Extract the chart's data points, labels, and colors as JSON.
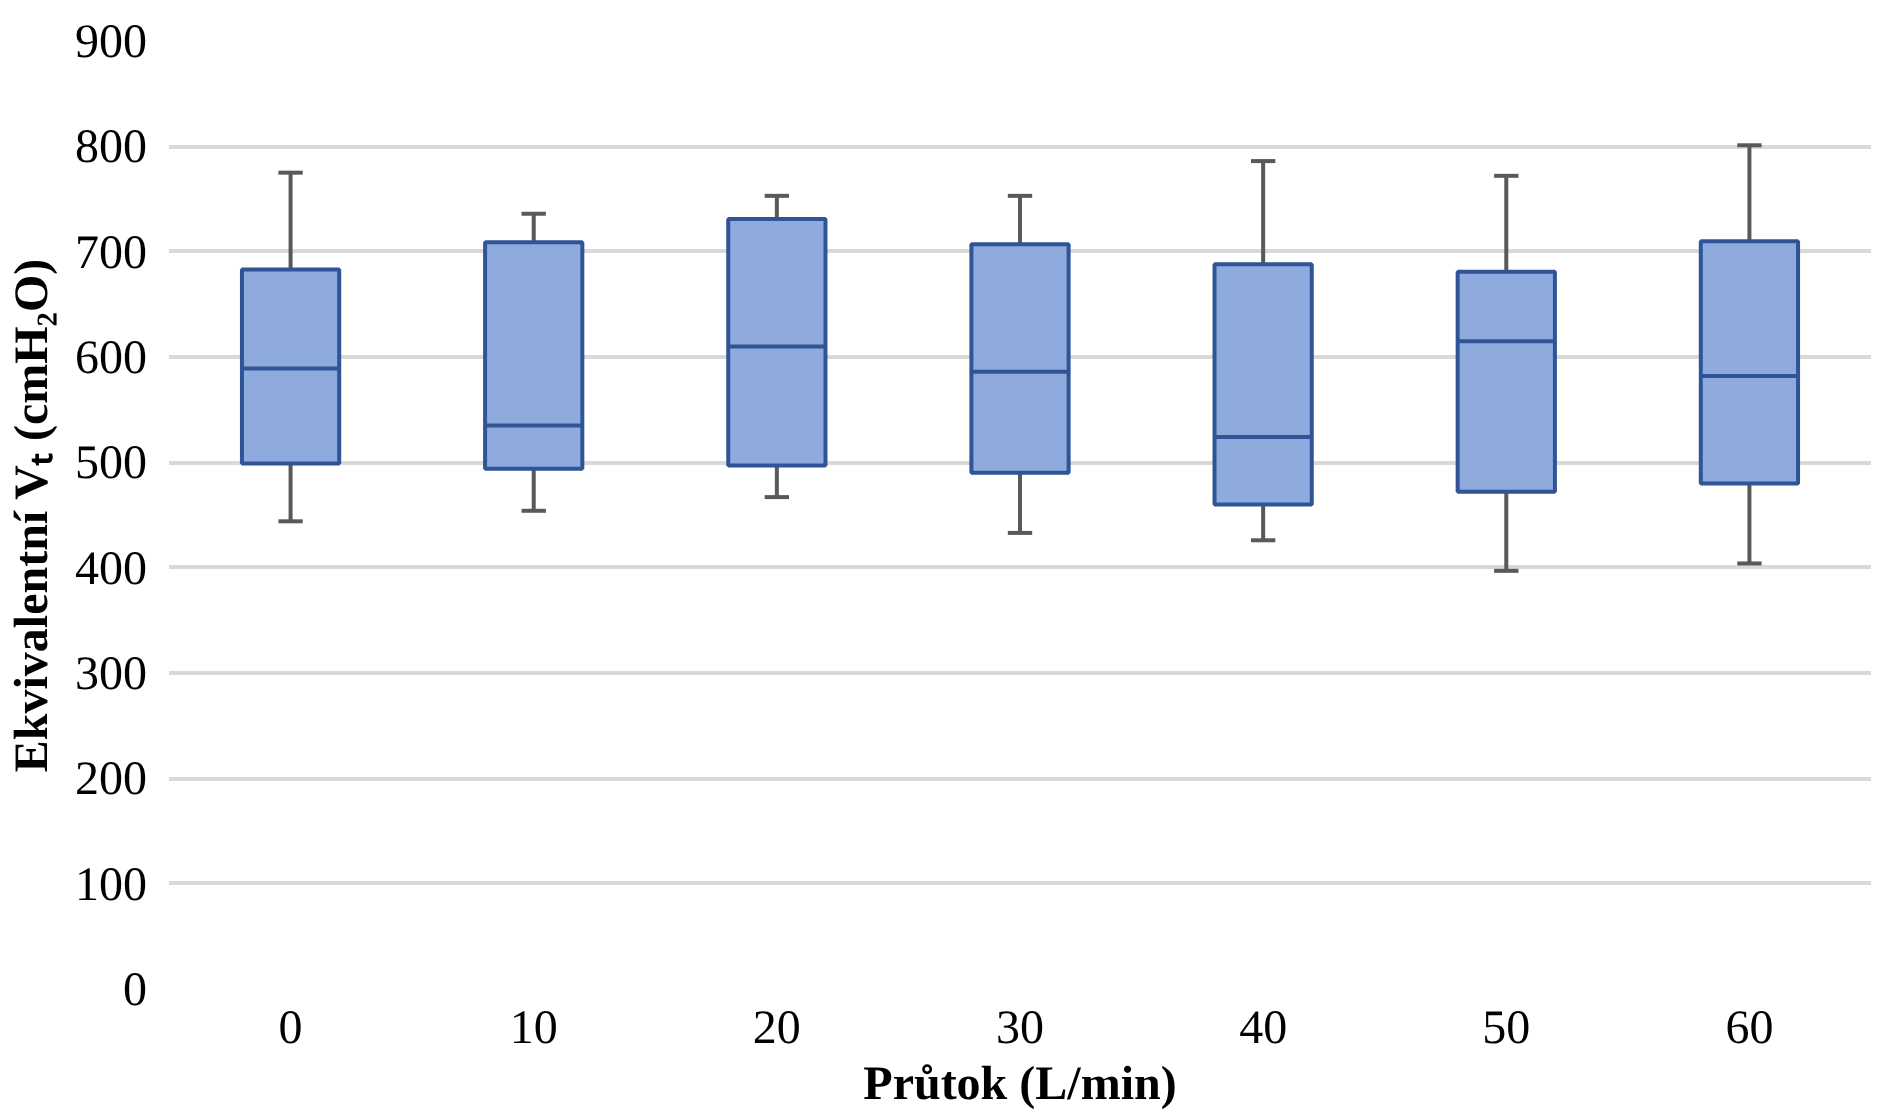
{
  "chart_data": {
    "type": "box",
    "xlabel": "Průtok (L/min)",
    "ylabel": "Ekvivalentní Vₜ (cmH₂O)",
    "categories": [
      "0",
      "10",
      "20",
      "30",
      "40",
      "50",
      "60"
    ],
    "color": "#8faadc",
    "boxes": [
      {
        "low": 444,
        "q1": 499,
        "median": 589,
        "q3": 683,
        "high": 775
      },
      {
        "low": 454,
        "q1": 494,
        "median": 535,
        "q3": 709,
        "high": 736
      },
      {
        "low": 467,
        "q1": 497,
        "median": 610,
        "q3": 731,
        "high": 753
      },
      {
        "low": 433,
        "q1": 490,
        "median": 586,
        "q3": 707,
        "high": 753
      },
      {
        "low": 426,
        "q1": 460,
        "median": 524,
        "q3": 688,
        "high": 786
      },
      {
        "low": 397,
        "q1": 472,
        "median": 615,
        "q3": 681,
        "high": 772
      },
      {
        "low": 404,
        "q1": 480,
        "median": 582,
        "q3": 710,
        "high": 801
      }
    ],
    "ylim": [
      0,
      900
    ],
    "yticks": [
      0,
      100,
      200,
      300,
      400,
      500,
      600,
      700,
      800,
      900
    ],
    "grid": "y"
  }
}
